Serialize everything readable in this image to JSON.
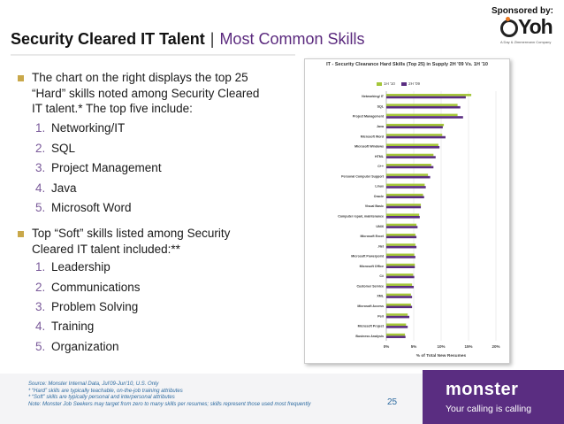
{
  "sponsor": {
    "label": "Sponsored by:",
    "logo_text": "Yoh",
    "logo_tagline": "A Day & Zimmermann Company"
  },
  "title": {
    "main": "Security Cleared IT Talent",
    "separator": "|",
    "sub": "Most Common Skills"
  },
  "hard_skills": {
    "intro": "The chart on the right displays the top 25 “Hard” skills noted among Security Cleared IT talent.* The top five include:",
    "items": [
      {
        "num": "1.",
        "label": "Networking/IT"
      },
      {
        "num": "2.",
        "label": "SQL"
      },
      {
        "num": "3.",
        "label": "Project Management"
      },
      {
        "num": "4.",
        "label": "Java"
      },
      {
        "num": "5.",
        "label": "Microsoft Word"
      }
    ]
  },
  "soft_skills": {
    "intro": "Top “Soft” skills listed among Security Cleared IT talent included:**",
    "items": [
      {
        "num": "1.",
        "label": "Leadership"
      },
      {
        "num": "2.",
        "label": "Communications"
      },
      {
        "num": "3.",
        "label": "Problem Solving"
      },
      {
        "num": "4.",
        "label": "Training"
      },
      {
        "num": "5.",
        "label": "Organization"
      }
    ]
  },
  "chart_data": {
    "type": "bar",
    "orientation": "horizontal",
    "title": "IT - Security Clearance Hard Skills (Top 25) in Supply 2H '09 Vs. 1H '10",
    "xlabel": "% of Total New Resumes",
    "ylabel": "",
    "xlim": [
      0,
      20
    ],
    "xticks": [
      "0%",
      "5%",
      "10%",
      "15%",
      "20%"
    ],
    "legend_position": "top",
    "categories": [
      "Networking/ IT",
      "SQL",
      "Project Management",
      "Java",
      "Microsoft Word",
      "Microsoft Windows",
      "HTML",
      "C++",
      "Personal Computer Support",
      "Linux",
      "Oracle",
      "Visual Basic",
      "Computer repair, maintenance",
      "UNIX",
      "Microsoft Excel",
      ".Net",
      "Microsoft Powerpoint",
      "Microsoft Office",
      "C#",
      "Customer Service",
      "XML",
      "Microsoft Access",
      "Perl",
      "Microsoft Project",
      "Business Analysis"
    ],
    "series": [
      {
        "name": "1H '10",
        "color": "#a4c639",
        "values": [
          15.5,
          13.0,
          13.0,
          10.5,
          10.2,
          9.5,
          8.6,
          8.2,
          7.6,
          7.0,
          6.7,
          6.3,
          6.0,
          5.5,
          5.3,
          5.3,
          5.1,
          5.2,
          4.9,
          4.7,
          4.5,
          4.5,
          3.9,
          3.6,
          3.4
        ]
      },
      {
        "name": "2H '09",
        "color": "#5a2d81",
        "values": [
          14.5,
          13.5,
          14.0,
          10.3,
          10.8,
          9.7,
          9.0,
          8.6,
          8.0,
          7.2,
          6.9,
          6.3,
          6.1,
          5.7,
          5.5,
          5.5,
          5.3,
          5.2,
          5.1,
          5.0,
          4.7,
          4.7,
          4.2,
          3.9,
          3.5
        ]
      }
    ]
  },
  "footer": {
    "lines": [
      "Source:  Monster Internal Data, Jul'09-Jun'10, U.S. Only",
      "* “Hard” skills are typically teachable, on-the-job training attributes",
      "* “Soft” skills are typically personal and interpersonal attributes",
      "Note: Monster Job Seekers may target from zero to many skills per resumes; skills represent those used most frequently"
    ],
    "page_number": "25"
  },
  "brand": {
    "name": "monster",
    "tagline": "Your calling is calling"
  },
  "colors": {
    "title_sub": "#5b2a7e",
    "bullet": "#c9a84a",
    "monster_purple": "#5a2d81",
    "footer_text": "#2c6aa0"
  }
}
